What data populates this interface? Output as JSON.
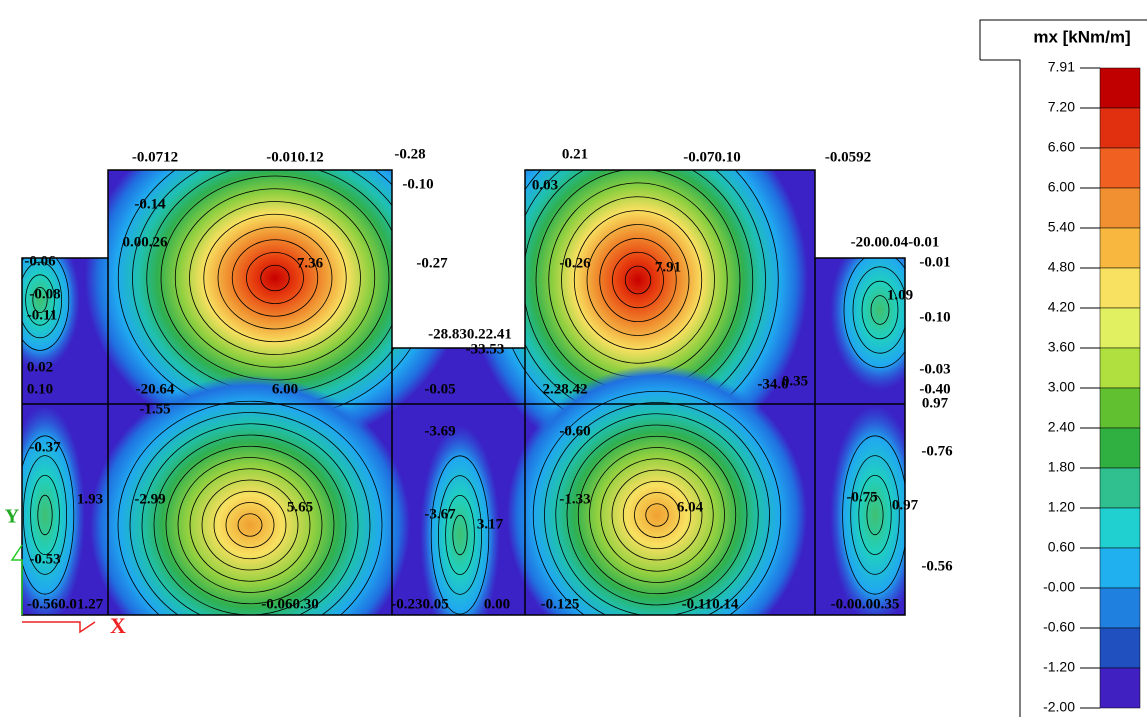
{
  "legend": {
    "title": "mx [kNm/m]",
    "labels": [
      "7.91",
      "7.20",
      "6.60",
      "6.00",
      "5.40",
      "4.80",
      "4.20",
      "3.60",
      "3.00",
      "2.40",
      "1.80",
      "1.20",
      "0.60",
      "-0.00",
      "-0.60",
      "-1.20",
      "-2.00"
    ]
  },
  "plot": {
    "annotations": [
      "-0.0712",
      "-0.010.12",
      "-0.28",
      "-0.10",
      "0.21",
      "-0.070.10",
      "-0.0592",
      "0.03",
      "-0.14",
      "0.00.26",
      "7.36",
      "-0.27",
      "-0.26",
      "7.91",
      "-20.00.04-0.01",
      "-0.01",
      "-0.06",
      "-0.08",
      "-0.11",
      "1.09",
      "-0.10",
      "-28.830.22.41",
      "-33.53",
      "0.02",
      "0.10",
      "-20.64",
      "6.00",
      "-0.05",
      "2.28.42",
      "-34.0",
      "0.35",
      "-0.03",
      "-0.40",
      "0.97",
      "-1.55",
      "-3.69",
      "-0.60",
      "-0.37",
      "-0.76",
      "1.93",
      "-2.99",
      "5.65",
      "6.04",
      "-1.33",
      "-0.75",
      "0.97",
      "-3.67",
      "3.17",
      "-0.53",
      "-0.56",
      "-0.560.01.27",
      "-0.060.30",
      "-0.230.05",
      "0.00",
      "-0.125",
      "-0.110.14",
      "-0.00.00.35"
    ],
    "axis_y": "Y",
    "axis_x": "X"
  }
}
